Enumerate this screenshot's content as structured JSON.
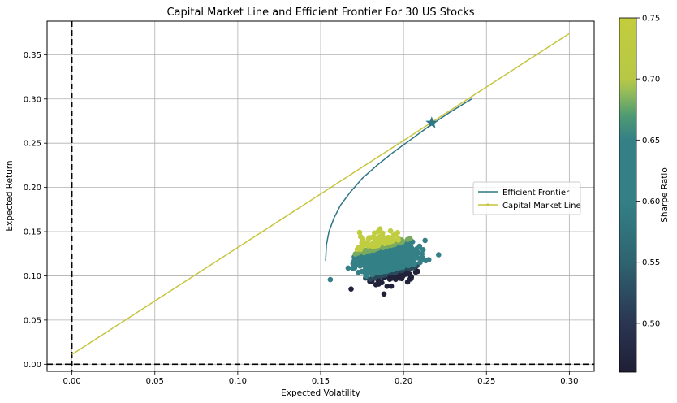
{
  "chart_data": {
    "type": "scatter",
    "title": "Capital Market Line and Efficient Frontier For 30 US Stocks",
    "xlabel": "Expected Volatility",
    "ylabel": "Expected Return",
    "xlim": [
      -0.015,
      0.315
    ],
    "ylim": [
      -0.008,
      0.388
    ],
    "x_ticks": [
      0.0,
      0.05,
      0.1,
      0.15,
      0.2,
      0.25,
      0.3
    ],
    "x_tick_labels": [
      "0.00",
      "0.05",
      "0.10",
      "0.15",
      "0.20",
      "0.25",
      "0.30"
    ],
    "y_ticks": [
      0.0,
      0.05,
      0.1,
      0.15,
      0.2,
      0.25,
      0.3,
      0.35
    ],
    "y_tick_labels": [
      "0.00",
      "0.05",
      "0.10",
      "0.15",
      "0.20",
      "0.25",
      "0.30",
      "0.35"
    ],
    "grid": true,
    "legend_position": "center-right",
    "series": [
      {
        "name": "Efficient Frontier",
        "kind": "line",
        "color": "#2e7585",
        "points": [
          [
            0.153,
            0.117
          ],
          [
            0.1535,
            0.135
          ],
          [
            0.155,
            0.15
          ],
          [
            0.158,
            0.165
          ],
          [
            0.162,
            0.18
          ],
          [
            0.168,
            0.195
          ],
          [
            0.175,
            0.21
          ],
          [
            0.184,
            0.225
          ],
          [
            0.194,
            0.24
          ],
          [
            0.205,
            0.255
          ],
          [
            0.216,
            0.27
          ],
          [
            0.228,
            0.285
          ],
          [
            0.241,
            0.3
          ]
        ]
      },
      {
        "name": "Capital Market Line",
        "kind": "line",
        "color": "#c7c43d",
        "points": [
          [
            0.0,
            0.011
          ],
          [
            0.3,
            0.374
          ]
        ]
      }
    ],
    "optimal_portfolio": {
      "x": 0.217,
      "y": 0.273,
      "marker": "star",
      "color": "#2e7585"
    },
    "random_portfolios": {
      "count": 1500,
      "center": [
        0.19,
        0.12
      ],
      "spread": [
        0.008,
        0.01
      ],
      "outlier": [
        0.213,
        0.14
      ],
      "colors": {
        "low": "#21223a",
        "mid": "#348086",
        "high": "#c0cd40"
      }
    },
    "reference_lines": {
      "x": 0.0,
      "y": 0.0,
      "style": "dashed",
      "color": "#000000"
    },
    "colorbar": {
      "label": "Sharpe Ratio",
      "range": [
        0.46,
        0.75
      ],
      "ticks": [
        0.5,
        0.55,
        0.6,
        0.65,
        0.7,
        0.75
      ],
      "tick_labels": [
        "0.50",
        "0.55",
        "0.60",
        "0.65",
        "0.70",
        "0.75"
      ],
      "stops": [
        {
          "value": 0.46,
          "color": "#1f1f35"
        },
        {
          "value": 0.5,
          "color": "#2a3552"
        },
        {
          "value": 0.55,
          "color": "#2f6370"
        },
        {
          "value": 0.6,
          "color": "#348086"
        },
        {
          "value": 0.65,
          "color": "#348086"
        },
        {
          "value": 0.67,
          "color": "#4f9a73"
        },
        {
          "value": 0.69,
          "color": "#97bd58"
        },
        {
          "value": 0.7,
          "color": "#b7c846"
        },
        {
          "value": 0.75,
          "color": "#c3cd3c"
        }
      ]
    }
  }
}
